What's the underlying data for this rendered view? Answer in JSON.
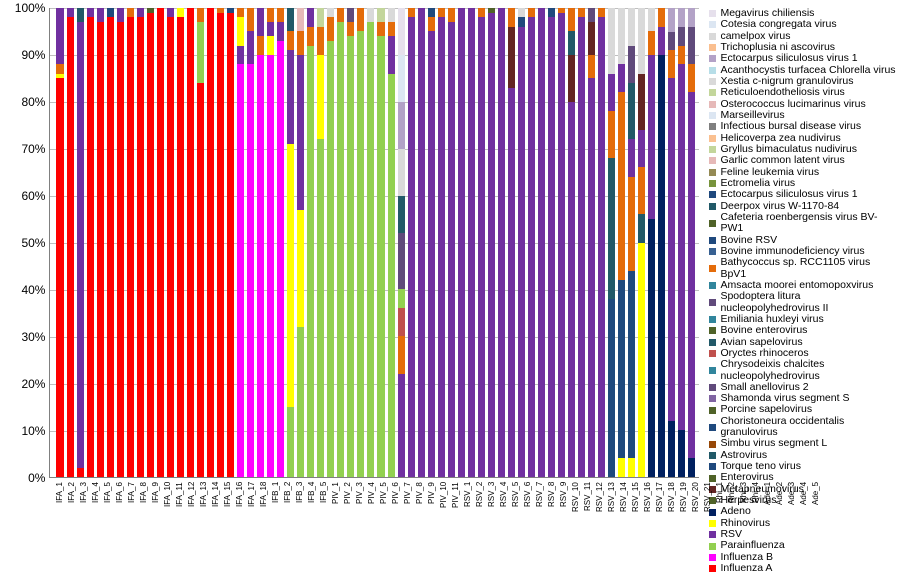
{
  "chart": {
    "type": "stacked-bar",
    "ylim": [
      0,
      100
    ],
    "ytick_step": 10,
    "y_format": "%",
    "background_color": "#ffffff",
    "grid_color": "#bfbfbf",
    "axis_color": "#808080",
    "label_fontsize": 12,
    "xlabel_fontsize": 8,
    "legend_fontsize": 10.5,
    "series": [
      {
        "key": "Influenza A",
        "color": "#ff0000"
      },
      {
        "key": "Influenza B",
        "color": "#ff00ff"
      },
      {
        "key": "Parainfluenza",
        "color": "#92d050"
      },
      {
        "key": "RSV",
        "color": "#7030a0"
      },
      {
        "key": "Rhinovirus",
        "color": "#ffff00"
      },
      {
        "key": "Adeno",
        "color": "#002060"
      },
      {
        "key": "Herpesvirus",
        "color": "#4f6228"
      },
      {
        "key": "Metapneumovirus",
        "color": "#632523"
      },
      {
        "key": "Enterovirus",
        "color": "#4f6228"
      },
      {
        "key": "Torque teno virus",
        "color": "#1f497d"
      },
      {
        "key": "Astrovirus",
        "color": "#215968"
      },
      {
        "key": "Simbu virus segment L",
        "color": "#974807"
      },
      {
        "key": "Choristoneura occidentalis granulovirus",
        "color": "#1f497d"
      },
      {
        "key": "Porcine sapelovirus",
        "color": "#4f6228"
      },
      {
        "key": "Shamonda virus segment S",
        "color": "#8064a2"
      },
      {
        "key": "Small anellovirus 2",
        "color": "#604a7b"
      },
      {
        "key": "Chrysodeixis chalcites nucleopolyhedrovirus",
        "color": "#31859c"
      },
      {
        "key": "Oryctes rhinoceros",
        "color": "#c0504d"
      },
      {
        "key": "Avian sapelovirus",
        "color": "#215968"
      },
      {
        "key": "Bovine enterovirus",
        "color": "#4f6228"
      },
      {
        "key": "Emiliania huxleyi virus",
        "color": "#31859c"
      },
      {
        "key": "Spodoptera litura nucleopolyhedrovirus II",
        "color": "#604a7b"
      },
      {
        "key": "Amsacta moorei entomopoxvirus",
        "color": "#31859c"
      },
      {
        "key": "Bathycoccus sp. RCC1105 virus BpV1",
        "color": "#e46c0a"
      },
      {
        "key": "Bovine immunodeficiency virus",
        "color": "#376092"
      },
      {
        "key": "Bovine RSV",
        "color": "#1f497d"
      },
      {
        "key": "Cafeteria roenbergensis virus BV-PW1",
        "color": "#4f6228"
      },
      {
        "key": "Deerpox virus W-1170-84",
        "color": "#215968"
      },
      {
        "key": "Ectocarpus siliculosus virus 1",
        "color": "#1f497d"
      },
      {
        "key": "Ectromelia virus",
        "color": "#77933c"
      },
      {
        "key": "Feline leukemia virus",
        "color": "#948a54"
      },
      {
        "key": "Garlic common latent virus",
        "color": "#e6b9b8"
      },
      {
        "key": "Gryllus bimaculatus nudivirus",
        "color": "#c3d69b"
      },
      {
        "key": "Helicoverpa zea nudivirus",
        "color": "#fac090"
      },
      {
        "key": "Infectious bursal disease virus",
        "color": "#7f7f7f"
      },
      {
        "key": "Marseillevirus",
        "color": "#dce6f2"
      },
      {
        "key": "Osterococcus lucimarinus virus",
        "color": "#e6b9b8"
      },
      {
        "key": "Reticuloendotheliosis virus",
        "color": "#c3d69b"
      },
      {
        "key": "Xestia c-nigrum granulovirus",
        "color": "#d9d9d9"
      },
      {
        "key": "Acanthocystis turfacea Chlorella virus",
        "color": "#b7dee8"
      },
      {
        "key": "Ectocarpus siliculosus virus 1",
        "color": "#b3a2c7"
      },
      {
        "key": "Trichoplusia ni ascovirus",
        "color": "#fabf8f"
      },
      {
        "key": "camelpox virus",
        "color": "#d9d9d9"
      },
      {
        "key": "Cotesia congregata virus",
        "color": "#dce6f2"
      },
      {
        "key": "Megavirus chiliensis",
        "color": "#e6e0ec"
      }
    ],
    "categories": [
      "IFA_1",
      "IFA_2",
      "IFA_3",
      "IFA_4",
      "IFA_5",
      "IFA_6",
      "IFA_7",
      "IFA_8",
      "IFA_9",
      "IFA_10",
      "IFA_11",
      "IFA_12",
      "IFA_13",
      "IFA_14",
      "IFA_15",
      "IFA_16",
      "IFA_17",
      "IFA_18",
      "IFB_1",
      "IFB_2",
      "IFB_3",
      "IFB_4",
      "IFB_5",
      "PIV_1",
      "PIV_2",
      "PIV_3",
      "PIV_4",
      "PIV_5",
      "PIV_6",
      "PIV_7",
      "PIV_8",
      "PIV_9",
      "PIV_10",
      "PIV_11",
      "RSV_1",
      "RSV_2",
      "RSV_3",
      "RSV_4",
      "RSV_5",
      "RSV_6",
      "RSV_7",
      "RSV_8",
      "RSV_9",
      "RSV_10",
      "RSV_11",
      "RSV_12",
      "RSV_13",
      "RSV_14",
      "RSV_15",
      "RSV_16",
      "RSV_17",
      "RSV_18",
      "RSV_19",
      "RSV_20",
      "RSV_21",
      "Rhi_1",
      "Rhi_2",
      "Rhi_3",
      "Rhi_4",
      "Ade_1",
      "Ade_2",
      "Ade_3",
      "Ade_4",
      "Ade_5"
    ],
    "bars": [
      [
        {
          "c": "#ff0000",
          "v": 85
        },
        {
          "c": "#ffff00",
          "v": 1
        },
        {
          "c": "#e46c0a",
          "v": 2
        },
        {
          "c": "#7030a0",
          "v": 12
        }
      ],
      [
        {
          "c": "#ff0000",
          "v": 98
        },
        {
          "c": "#7030a0",
          "v": 2
        }
      ],
      [
        {
          "c": "#ff0000",
          "v": 2
        },
        {
          "c": "#7030a0",
          "v": 95
        },
        {
          "c": "#215968",
          "v": 3
        }
      ],
      [
        {
          "c": "#ff0000",
          "v": 98
        },
        {
          "c": "#7030a0",
          "v": 2
        }
      ],
      [
        {
          "c": "#ff0000",
          "v": 97
        },
        {
          "c": "#7030a0",
          "v": 3
        }
      ],
      [
        {
          "c": "#ff0000",
          "v": 98
        },
        {
          "c": "#1f497d",
          "v": 2
        }
      ],
      [
        {
          "c": "#ff0000",
          "v": 97
        },
        {
          "c": "#7030a0",
          "v": 3
        }
      ],
      [
        {
          "c": "#ff0000",
          "v": 98
        },
        {
          "c": "#e46c0a",
          "v": 2
        }
      ],
      [
        {
          "c": "#ff0000",
          "v": 98
        },
        {
          "c": "#7030a0",
          "v": 2
        }
      ],
      [
        {
          "c": "#ff0000",
          "v": 99
        },
        {
          "c": "#4f6228",
          "v": 1
        }
      ],
      [
        {
          "c": "#ff0000",
          "v": 100
        }
      ],
      [
        {
          "c": "#ff0000",
          "v": 98
        },
        {
          "c": "#7030a0",
          "v": 2
        }
      ],
      [
        {
          "c": "#ff0000",
          "v": 98
        },
        {
          "c": "#ffff00",
          "v": 2
        }
      ],
      [
        {
          "c": "#ff0000",
          "v": 100
        }
      ],
      [
        {
          "c": "#ff0000",
          "v": 84
        },
        {
          "c": "#92d050",
          "v": 13
        },
        {
          "c": "#e46c0a",
          "v": 3
        }
      ],
      [
        {
          "c": "#ff0000",
          "v": 100
        }
      ],
      [
        {
          "c": "#ff0000",
          "v": 99
        },
        {
          "c": "#e46c0a",
          "v": 1
        }
      ],
      [
        {
          "c": "#ff0000",
          "v": 99
        },
        {
          "c": "#1f497d",
          "v": 1
        }
      ],
      [
        {
          "c": "#ff00ff",
          "v": 88
        },
        {
          "c": "#7030a0",
          "v": 4
        },
        {
          "c": "#ffff00",
          "v": 6
        },
        {
          "c": "#e46c0a",
          "v": 2
        }
      ],
      [
        {
          "c": "#ff00ff",
          "v": 88
        },
        {
          "c": "#7030a0",
          "v": 7
        },
        {
          "c": "#e46c0a",
          "v": 5
        }
      ],
      [
        {
          "c": "#ff00ff",
          "v": 90
        },
        {
          "c": "#e46c0a",
          "v": 4
        },
        {
          "c": "#7030a0",
          "v": 6
        }
      ],
      [
        {
          "c": "#ff00ff",
          "v": 90
        },
        {
          "c": "#ffff00",
          "v": 4
        },
        {
          "c": "#7030a0",
          "v": 3
        },
        {
          "c": "#e46c0a",
          "v": 3
        }
      ],
      [
        {
          "c": "#ff00ff",
          "v": 93
        },
        {
          "c": "#7030a0",
          "v": 4
        },
        {
          "c": "#e46c0a",
          "v": 3
        }
      ],
      [
        {
          "c": "#92d050",
          "v": 15
        },
        {
          "c": "#ffff00",
          "v": 56
        },
        {
          "c": "#7030a0",
          "v": 20
        },
        {
          "c": "#e46c0a",
          "v": 4
        },
        {
          "c": "#215968",
          "v": 5
        }
      ],
      [
        {
          "c": "#92d050",
          "v": 32
        },
        {
          "c": "#ffff00",
          "v": 25
        },
        {
          "c": "#7030a0",
          "v": 33
        },
        {
          "c": "#e46c0a",
          "v": 5
        },
        {
          "c": "#e6b9b8",
          "v": 5
        }
      ],
      [
        {
          "c": "#92d050",
          "v": 92
        },
        {
          "c": "#e46c0a",
          "v": 4
        },
        {
          "c": "#7030a0",
          "v": 4
        }
      ],
      [
        {
          "c": "#92d050",
          "v": 72
        },
        {
          "c": "#ffff00",
          "v": 18
        },
        {
          "c": "#e46c0a",
          "v": 6
        },
        {
          "c": "#c3d69b",
          "v": 4
        }
      ],
      [
        {
          "c": "#92d050",
          "v": 93
        },
        {
          "c": "#e46c0a",
          "v": 5
        },
        {
          "c": "#d9d9d9",
          "v": 2
        }
      ],
      [
        {
          "c": "#92d050",
          "v": 97
        },
        {
          "c": "#e46c0a",
          "v": 3
        }
      ],
      [
        {
          "c": "#92d050",
          "v": 94
        },
        {
          "c": "#e46c0a",
          "v": 3
        },
        {
          "c": "#604a7b",
          "v": 3
        }
      ],
      [
        {
          "c": "#92d050",
          "v": 95
        },
        {
          "c": "#e46c0a",
          "v": 5
        }
      ],
      [
        {
          "c": "#92d050",
          "v": 97
        },
        {
          "c": "#d9d9d9",
          "v": 3
        }
      ],
      [
        {
          "c": "#92d050",
          "v": 94
        },
        {
          "c": "#e46c0a",
          "v": 3
        },
        {
          "c": "#c3d69b",
          "v": 3
        }
      ],
      [
        {
          "c": "#92d050",
          "v": 86
        },
        {
          "c": "#7030a0",
          "v": 8
        },
        {
          "c": "#e46c0a",
          "v": 3
        },
        {
          "c": "#d9d9d9",
          "v": 3
        }
      ],
      [
        {
          "c": "#7030a0",
          "v": 22
        },
        {
          "c": "#e46c0a",
          "v": 8
        },
        {
          "c": "#c0504d",
          "v": 6
        },
        {
          "c": "#92d050",
          "v": 4
        },
        {
          "c": "#604a7b",
          "v": 12
        },
        {
          "c": "#215968",
          "v": 8
        },
        {
          "c": "#d9d9d9",
          "v": 10
        },
        {
          "c": "#b3a2c7",
          "v": 10
        },
        {
          "c": "#dce6f2",
          "v": 10
        },
        {
          "c": "#e6e0ec",
          "v": 10
        }
      ],
      [
        {
          "c": "#7030a0",
          "v": 98
        },
        {
          "c": "#e46c0a",
          "v": 2
        }
      ],
      [
        {
          "c": "#7030a0",
          "v": 100
        }
      ],
      [
        {
          "c": "#7030a0",
          "v": 95
        },
        {
          "c": "#e46c0a",
          "v": 3
        },
        {
          "c": "#1f497d",
          "v": 2
        }
      ],
      [
        {
          "c": "#7030a0",
          "v": 98
        },
        {
          "c": "#e46c0a",
          "v": 2
        }
      ],
      [
        {
          "c": "#7030a0",
          "v": 97
        },
        {
          "c": "#e46c0a",
          "v": 3
        }
      ],
      [
        {
          "c": "#7030a0",
          "v": 100
        }
      ],
      [
        {
          "c": "#7030a0",
          "v": 100
        }
      ],
      [
        {
          "c": "#7030a0",
          "v": 98
        },
        {
          "c": "#e46c0a",
          "v": 2
        }
      ],
      [
        {
          "c": "#7030a0",
          "v": 99
        },
        {
          "c": "#4f6228",
          "v": 1
        }
      ],
      [
        {
          "c": "#7030a0",
          "v": 100
        }
      ],
      [
        {
          "c": "#7030a0",
          "v": 83
        },
        {
          "c": "#632523",
          "v": 13
        },
        {
          "c": "#e46c0a",
          "v": 4
        }
      ],
      [
        {
          "c": "#7030a0",
          "v": 96
        },
        {
          "c": "#1f497d",
          "v": 2
        },
        {
          "c": "#d9d9d9",
          "v": 2
        }
      ],
      [
        {
          "c": "#7030a0",
          "v": 98
        },
        {
          "c": "#e46c0a",
          "v": 2
        }
      ],
      [
        {
          "c": "#7030a0",
          "v": 100
        }
      ],
      [
        {
          "c": "#7030a0",
          "v": 98
        },
        {
          "c": "#1f497d",
          "v": 2
        }
      ],
      [
        {
          "c": "#7030a0",
          "v": 99
        },
        {
          "c": "#e46c0a",
          "v": 1
        }
      ],
      [
        {
          "c": "#7030a0",
          "v": 80
        },
        {
          "c": "#632523",
          "v": 10
        },
        {
          "c": "#215968",
          "v": 5
        },
        {
          "c": "#e46c0a",
          "v": 5
        }
      ],
      [
        {
          "c": "#7030a0",
          "v": 98
        },
        {
          "c": "#e46c0a",
          "v": 2
        }
      ],
      [
        {
          "c": "#7030a0",
          "v": 85
        },
        {
          "c": "#e46c0a",
          "v": 5
        },
        {
          "c": "#632523",
          "v": 7
        },
        {
          "c": "#604a7b",
          "v": 3
        }
      ],
      [
        {
          "c": "#7030a0",
          "v": 98
        },
        {
          "c": "#e46c0a",
          "v": 2
        }
      ],
      [
        {
          "c": "#1f497d",
          "v": 38
        },
        {
          "c": "#215968",
          "v": 30
        },
        {
          "c": "#e46c0a",
          "v": 10
        },
        {
          "c": "#7030a0",
          "v": 8
        },
        {
          "c": "#d9d9d9",
          "v": 14
        }
      ],
      [
        {
          "c": "#ffff00",
          "v": 4
        },
        {
          "c": "#1f497d",
          "v": 38
        },
        {
          "c": "#e46c0a",
          "v": 40
        },
        {
          "c": "#7030a0",
          "v": 6
        },
        {
          "c": "#d9d9d9",
          "v": 12
        }
      ],
      [
        {
          "c": "#ffff00",
          "v": 4
        },
        {
          "c": "#1f497d",
          "v": 40
        },
        {
          "c": "#e46c0a",
          "v": 20
        },
        {
          "c": "#7030a0",
          "v": 8
        },
        {
          "c": "#215968",
          "v": 12
        },
        {
          "c": "#604a7b",
          "v": 8
        },
        {
          "c": "#d9d9d9",
          "v": 8
        }
      ],
      [
        {
          "c": "#ffff00",
          "v": 50
        },
        {
          "c": "#215968",
          "v": 6
        },
        {
          "c": "#e46c0a",
          "v": 10
        },
        {
          "c": "#7030a0",
          "v": 8
        },
        {
          "c": "#632523",
          "v": 12
        },
        {
          "c": "#d9d9d9",
          "v": 14
        }
      ],
      [
        {
          "c": "#002060",
          "v": 55
        },
        {
          "c": "#7030a0",
          "v": 35
        },
        {
          "c": "#e46c0a",
          "v": 5
        },
        {
          "c": "#d9d9d9",
          "v": 5
        }
      ],
      [
        {
          "c": "#002060",
          "v": 90
        },
        {
          "c": "#7030a0",
          "v": 6
        },
        {
          "c": "#e46c0a",
          "v": 4
        }
      ],
      [
        {
          "c": "#002060",
          "v": 12
        },
        {
          "c": "#7030a0",
          "v": 73
        },
        {
          "c": "#e46c0a",
          "v": 6
        },
        {
          "c": "#604a7b",
          "v": 4
        },
        {
          "c": "#b3a2c7",
          "v": 5
        }
      ],
      [
        {
          "c": "#002060",
          "v": 10
        },
        {
          "c": "#7030a0",
          "v": 78
        },
        {
          "c": "#e46c0a",
          "v": 4
        },
        {
          "c": "#604a7b",
          "v": 4
        },
        {
          "c": "#b3a2c7",
          "v": 4
        }
      ],
      [
        {
          "c": "#002060",
          "v": 4
        },
        {
          "c": "#7030a0",
          "v": 78
        },
        {
          "c": "#e46c0a",
          "v": 6
        },
        {
          "c": "#604a7b",
          "v": 8
        },
        {
          "c": "#b3a2c7",
          "v": 4
        }
      ]
    ]
  }
}
